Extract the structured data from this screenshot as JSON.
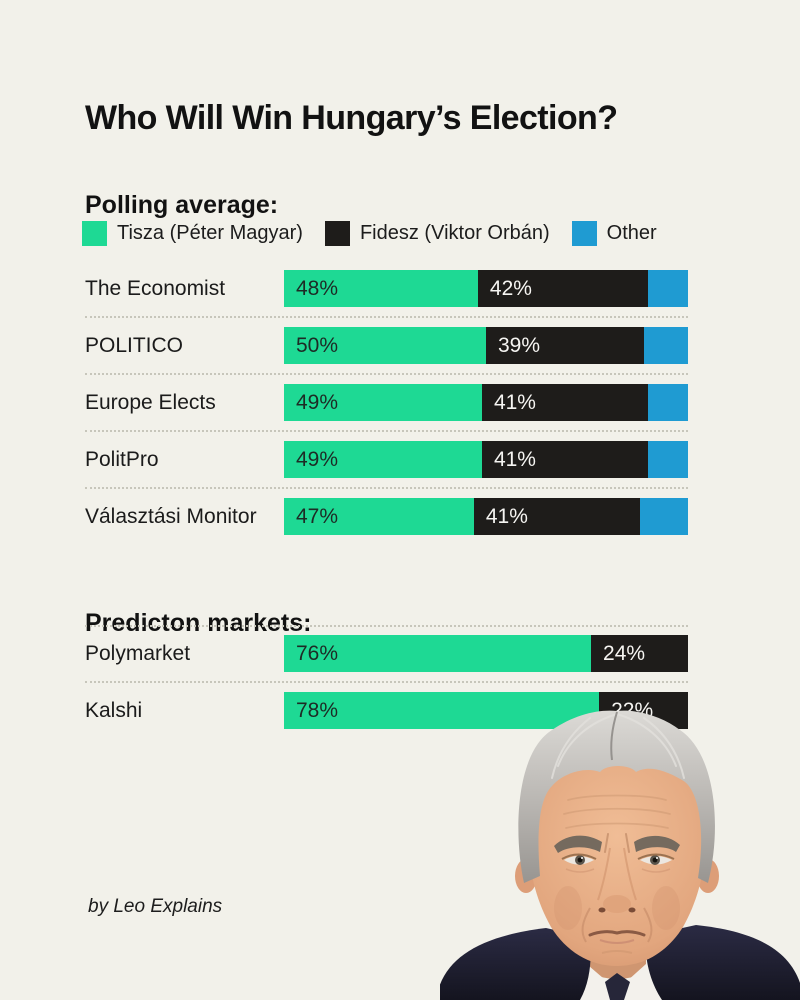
{
  "page": {
    "title": "Who Will Win Hungary’s Election?",
    "byline": "by Leo Explains",
    "background": "#f2f1ea"
  },
  "colors": {
    "tisza_green": "#1ed994",
    "fidesz_black": "#1e1c1a",
    "other_blue": "#1f9bd2"
  },
  "legend": [
    {
      "label": "Tisza (Péter Magyar)",
      "color": "#1ed994"
    },
    {
      "label": "Fidesz (Viktor Orbán)",
      "color": "#1e1c1a"
    },
    {
      "label": "Other",
      "color": "#1f9bd2"
    }
  ],
  "chart_data": [
    {
      "type": "bar",
      "orientation": "horizontal",
      "stacked": true,
      "title": "Polling average:",
      "categories": [
        "The Economist",
        "POLITICO",
        "Europe Elects",
        "PolitPro",
        "Választási Monitor"
      ],
      "series": [
        {
          "name": "Tisza (Péter Magyar)",
          "color": "#1ed994",
          "show_label": true,
          "values": [
            48,
            50,
            49,
            49,
            47
          ]
        },
        {
          "name": "Fidesz (Viktor Orbán)",
          "color": "#1e1c1a",
          "show_label": true,
          "values": [
            42,
            39,
            41,
            41,
            41
          ]
        },
        {
          "name": "Other",
          "color": "#1f9bd2",
          "show_label": false,
          "values": [
            10,
            11,
            10,
            10,
            12
          ]
        }
      ],
      "value_suffix": "%",
      "xlim": [
        0,
        100
      ],
      "grid": false,
      "legend_position": "top"
    },
    {
      "type": "bar",
      "orientation": "horizontal",
      "stacked": true,
      "title": "Predicton markets:",
      "categories": [
        "Polymarket",
        "Kalshi"
      ],
      "series": [
        {
          "name": "Tisza (Péter Magyar)",
          "color": "#1ed994",
          "show_label": true,
          "values": [
            76,
            78
          ]
        },
        {
          "name": "Fidesz (Viktor Orbán)",
          "color": "#1e1c1a",
          "show_label": true,
          "values": [
            24,
            22
          ]
        }
      ],
      "value_suffix": "%",
      "xlim": [
        0,
        100
      ],
      "grid": false
    }
  ],
  "portrait": {
    "subject": "Viktor Orbán"
  }
}
